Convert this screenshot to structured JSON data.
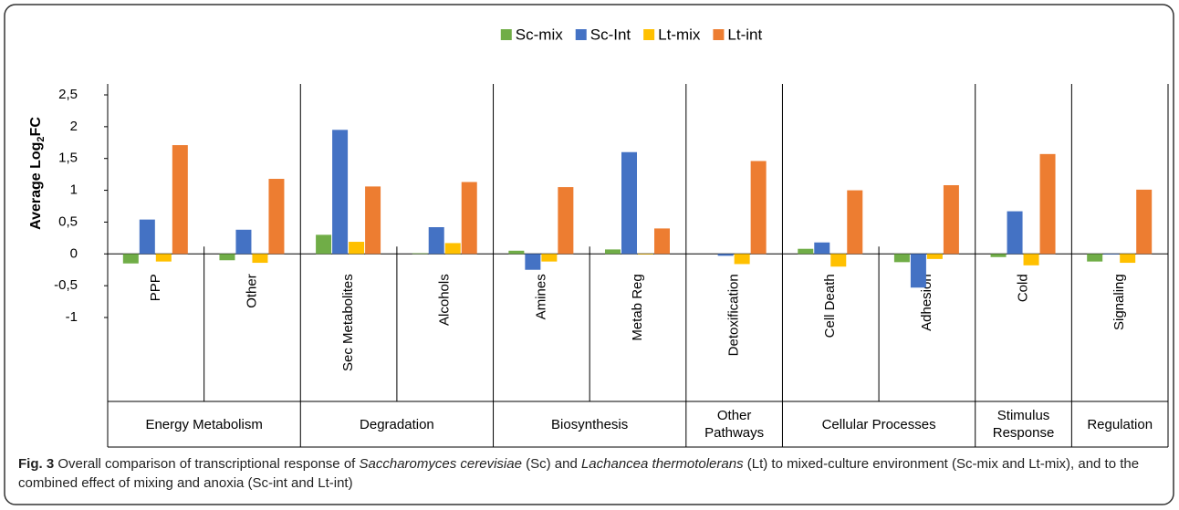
{
  "chart_data": {
    "type": "bar",
    "ylabel": "Average Log",
    "ylabel_sub": "2",
    "ylabel_end": "FC",
    "groups": [
      {
        "name": "Energy Metabolism",
        "categories": [
          "PPP",
          "Other"
        ]
      },
      {
        "name": "Degradation",
        "categories": [
          "Sec Metabolites",
          "Alcohols"
        ]
      },
      {
        "name": "Biosynthesis",
        "categories": [
          "Amines",
          "Metab Reg"
        ]
      },
      {
        "name": "Other Pathways",
        "categories": [
          "Detoxification"
        ]
      },
      {
        "name": "Cellular Processes",
        "categories": [
          "Cell Death",
          "Adhesion"
        ]
      },
      {
        "name": "Stimulus Response",
        "categories": [
          "Cold"
        ]
      },
      {
        "name": "Regulation",
        "categories": [
          "Signaling"
        ]
      }
    ],
    "series": [
      {
        "name": "Sc-mix",
        "color": "#70ad47",
        "values": [
          -0.15,
          -0.1,
          0.3,
          0.01,
          0.05,
          0.07,
          0,
          0.08,
          -0.13,
          -0.05,
          -0.12
        ]
      },
      {
        "name": "Sc-Int",
        "color": "#4472c4",
        "values": [
          0.54,
          0.38,
          1.95,
          0.42,
          -0.25,
          1.6,
          -0.03,
          0.18,
          -0.53,
          0.67,
          -0.01
        ]
      },
      {
        "name": "Lt-mix",
        "color": "#ffc000",
        "values": [
          -0.12,
          -0.14,
          0.19,
          0.17,
          -0.12,
          -0.01,
          -0.16,
          -0.2,
          -0.08,
          -0.18,
          -0.14
        ]
      },
      {
        "name": "Lt-int",
        "color": "#ed7d31",
        "values": [
          1.71,
          1.18,
          1.06,
          1.13,
          1.05,
          0.4,
          1.46,
          1.0,
          1.08,
          1.57,
          1.01
        ]
      }
    ],
    "ylim": [
      -1,
      2.5
    ],
    "yticks": [
      {
        "value": 2.5,
        "label": "2,5"
      },
      2,
      {
        "value": 1.5,
        "label": "1,5"
      },
      1,
      {
        "value": 0.5,
        "label": "0,5"
      },
      0,
      {
        "value": -0.5,
        "label": "-0,5"
      },
      -1
    ],
    "legend": "top",
    "grid": false
  },
  "caption": {
    "label": "Fig. 3",
    "parts": [
      "Overall comparison of transcriptional response of",
      "Saccharomyces cerevisiae",
      "(Sc) and",
      "Lachancea thermotolerans",
      "(Lt) to mixed-culture environment (Sc-mix and Lt-mix), and to the combined effect of mixing and anoxia (Sc-int and Lt-int)"
    ]
  }
}
